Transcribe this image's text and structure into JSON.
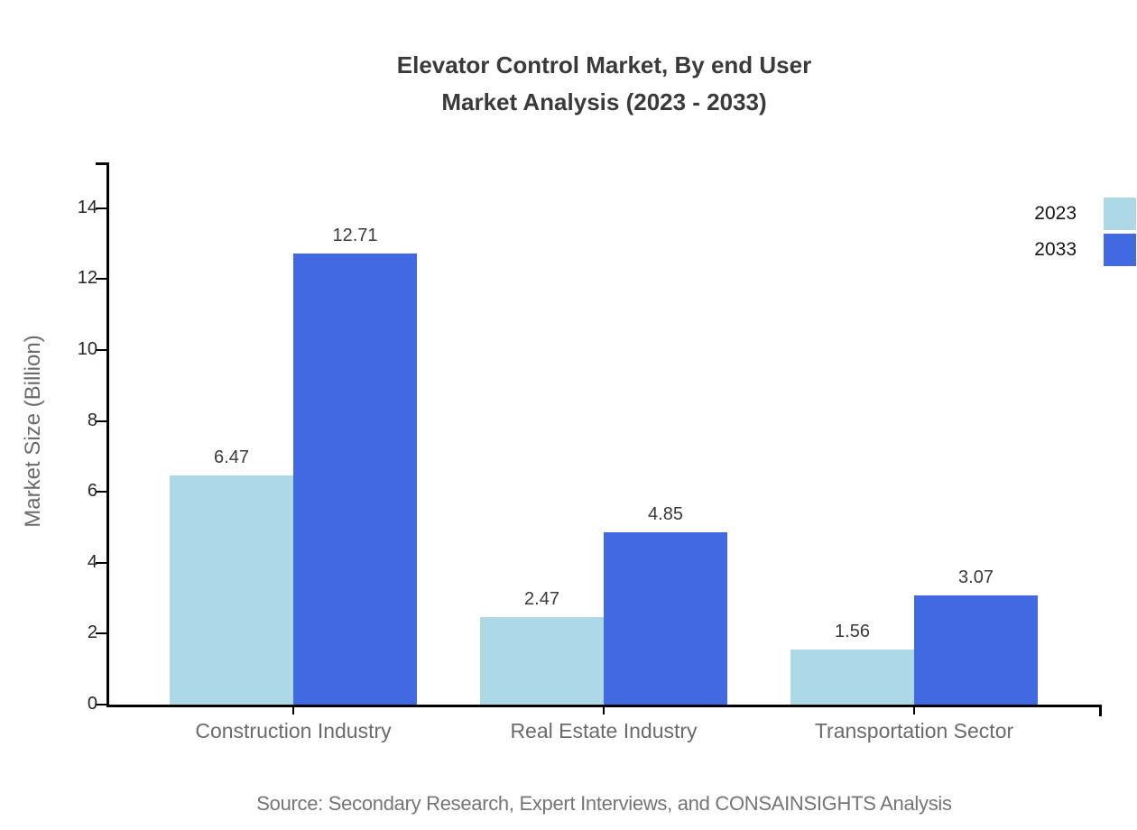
{
  "chart_data": {
    "type": "bar",
    "title_lines": [
      "Elevator Control Market, By end User",
      "Market Analysis (2023 - 2033)"
    ],
    "title": "Elevator Control Market, By end User Market Analysis (2023 - 2033)",
    "categories": [
      "Construction Industry",
      "Real Estate Industry",
      "Transportation Sector"
    ],
    "series": [
      {
        "name": "2023",
        "color": "#ADD8E6",
        "values": [
          6.47,
          2.47,
          1.56
        ]
      },
      {
        "name": "2033",
        "color": "#4169E1",
        "values": [
          12.71,
          4.85,
          3.07
        ]
      }
    ],
    "xlabel": "",
    "ylabel": "Market Size (Billion)",
    "yticks": [
      0,
      2,
      4,
      6,
      8,
      10,
      12,
      14
    ],
    "ylim": [
      0,
      15.3
    ],
    "grid": false,
    "value_labels": true,
    "legend_position": "top-right",
    "source": "Source: Secondary Research, Expert Interviews, and CONSAINSIGHTS Analysis"
  },
  "colors": {
    "title_text": "#3A3A3A",
    "axis": "#000000",
    "tick_label": "#262626",
    "category_label": "#6B6B6B",
    "value_label": "#3A3A3A",
    "source_text": "#757575"
  }
}
